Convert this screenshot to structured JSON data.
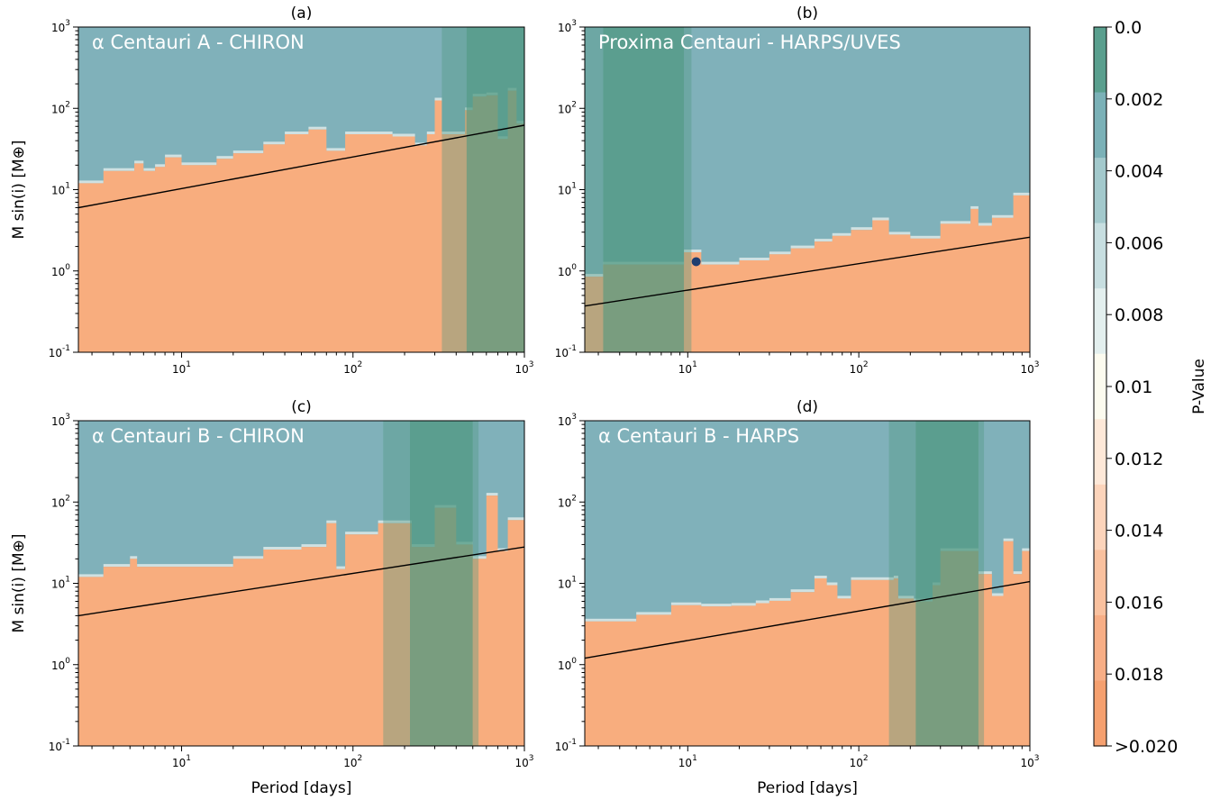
{
  "colors": {
    "low_pvalue": "#4f9880",
    "background": "#80b1ba",
    "detectable": "#f8ad7e",
    "habitable_zone": "#4f9880",
    "trend_line": "#000000",
    "planet_marker": "#1f3e70"
  },
  "colorbar": {
    "label": "P-Value",
    "ticks": [
      "0.0",
      "0.002",
      "0.004",
      "0.006",
      "0.008",
      "0.01",
      "0.012",
      "0.014",
      "0.016",
      "0.018",
      ">0.020"
    ],
    "colors": [
      "#5a9f8e",
      "#7bb1b7",
      "#a3c9cc",
      "#c7dee0",
      "#e3efee",
      "#fcfbef",
      "#fde8d8",
      "#fcd4bb",
      "#f9c19f",
      "#f7ae86",
      "#f5a06f"
    ]
  },
  "chart_data": [
    {
      "type": "heatmap",
      "panel": "(a)",
      "title": "(a)",
      "label": "α Centauri A - CHIRON",
      "ylabel": "M sin(i) [M⊕]",
      "xlabel": "",
      "xscale": "log",
      "yscale": "log",
      "xlim": [
        2.5,
        1000
      ],
      "ylim": [
        0.1,
        1000
      ],
      "x_ticks": [
        "10^1",
        "10^2",
        "10^3"
      ],
      "y_ticks": [
        "10^-1",
        "10^0",
        "10^1",
        "10^2",
        "10^3"
      ],
      "detection_boundary": [
        [
          2.5,
          12
        ],
        [
          3.5,
          17
        ],
        [
          5.3,
          21
        ],
        [
          6,
          17
        ],
        [
          7,
          19
        ],
        [
          8,
          25
        ],
        [
          10,
          20
        ],
        [
          16,
          24
        ],
        [
          20,
          28
        ],
        [
          30,
          36
        ],
        [
          40,
          48
        ],
        [
          55,
          55
        ],
        [
          70,
          30
        ],
        [
          90,
          48
        ],
        [
          170,
          45
        ],
        [
          230,
          35
        ],
        [
          270,
          48
        ],
        [
          300,
          125
        ],
        [
          330,
          48
        ],
        [
          450,
          95
        ],
        [
          500,
          140
        ],
        [
          600,
          145
        ],
        [
          700,
          42
        ],
        [
          800,
          165
        ],
        [
          900,
          65
        ],
        [
          1000,
          48
        ]
      ],
      "trend_line": [
        [
          2.5,
          6
        ],
        [
          1000,
          62
        ]
      ],
      "shaded_regions": [
        {
          "x": [
            330,
            460
          ],
          "style": "light"
        },
        {
          "x": [
            460,
            1000
          ],
          "style": "dark"
        }
      ],
      "planets": []
    },
    {
      "type": "heatmap",
      "panel": "(b)",
      "title": "(b)",
      "label": "Proxima Centauri - HARPS/UVES",
      "ylabel": "",
      "xlabel": "",
      "xscale": "log",
      "yscale": "log",
      "xlim": [
        2.5,
        1000
      ],
      "ylim": [
        0.1,
        1000
      ],
      "x_ticks": [
        "10^1",
        "10^2",
        "10^3"
      ],
      "y_ticks": [
        "10^-1",
        "10^0",
        "10^1",
        "10^2",
        "10^3"
      ],
      "detection_boundary": [
        [
          2.5,
          0.85
        ],
        [
          3.2,
          1.2
        ],
        [
          9.5,
          1.7
        ],
        [
          12,
          1.2
        ],
        [
          20,
          1.35
        ],
        [
          30,
          1.6
        ],
        [
          40,
          1.9
        ],
        [
          55,
          2.3
        ],
        [
          70,
          2.7
        ],
        [
          90,
          3.2
        ],
        [
          120,
          4.2
        ],
        [
          150,
          2.8
        ],
        [
          200,
          2.5
        ],
        [
          300,
          3.8
        ],
        [
          450,
          5.8
        ],
        [
          500,
          3.6
        ],
        [
          600,
          4.5
        ],
        [
          800,
          8.5
        ],
        [
          1000,
          7
        ]
      ],
      "trend_line": [
        [
          2.5,
          0.37
        ],
        [
          1000,
          2.6
        ]
      ],
      "shaded_regions": [
        {
          "x": [
            2.5,
            3.2
          ],
          "style": "light"
        },
        {
          "x": [
            3.2,
            9.5
          ],
          "style": "dark"
        },
        {
          "x": [
            9.5,
            10.5
          ],
          "style": "light"
        }
      ],
      "planets": [
        {
          "x": 11.2,
          "y": 1.3
        }
      ]
    },
    {
      "type": "heatmap",
      "panel": "(c)",
      "title": "(c)",
      "label": "α Centauri B - CHIRON",
      "ylabel": "M sin(i) [M⊕]",
      "xlabel": "Period [days]",
      "xscale": "log",
      "yscale": "log",
      "xlim": [
        2.5,
        1000
      ],
      "ylim": [
        0.1,
        1000
      ],
      "x_ticks": [
        "10^1",
        "10^2",
        "10^3"
      ],
      "y_ticks": [
        "10^-1",
        "10^0",
        "10^1",
        "10^2",
        "10^3"
      ],
      "detection_boundary": [
        [
          2.5,
          12
        ],
        [
          3.5,
          16
        ],
        [
          5,
          20
        ],
        [
          5.5,
          16
        ],
        [
          20,
          20
        ],
        [
          30,
          26
        ],
        [
          50,
          28
        ],
        [
          70,
          55
        ],
        [
          80,
          15
        ],
        [
          90,
          40
        ],
        [
          140,
          55
        ],
        [
          220,
          28
        ],
        [
          300,
          85
        ],
        [
          400,
          30
        ],
        [
          500,
          20
        ],
        [
          600,
          120
        ],
        [
          700,
          25
        ],
        [
          800,
          60
        ],
        [
          1000,
          40
        ]
      ],
      "trend_line": [
        [
          2.5,
          4
        ],
        [
          1000,
          28
        ]
      ],
      "shaded_regions": [
        {
          "x": [
            150,
            215
          ],
          "style": "light"
        },
        {
          "x": [
            215,
            500
          ],
          "style": "dark"
        },
        {
          "x": [
            500,
            540
          ],
          "style": "light"
        }
      ],
      "planets": []
    },
    {
      "type": "heatmap",
      "panel": "(d)",
      "title": "(d)",
      "label": "α Centauri B - HARPS",
      "ylabel": "",
      "xlabel": "Period [days]",
      "xscale": "log",
      "yscale": "log",
      "xlim": [
        2.5,
        1000
      ],
      "ylim": [
        0.1,
        1000
      ],
      "x_ticks": [
        "10^1",
        "10^2",
        "10^3"
      ],
      "y_ticks": [
        "10^-1",
        "10^0",
        "10^1",
        "10^2",
        "10^3"
      ],
      "detection_boundary": [
        [
          2.5,
          3.4
        ],
        [
          5,
          4.1
        ],
        [
          8,
          5.4
        ],
        [
          12,
          5.2
        ],
        [
          18,
          5.3
        ],
        [
          25,
          5.7
        ],
        [
          30,
          6.1
        ],
        [
          40,
          7.8
        ],
        [
          55,
          11.5
        ],
        [
          65,
          9.5
        ],
        [
          75,
          6.5
        ],
        [
          90,
          11
        ],
        [
          160,
          11.5
        ],
        [
          170,
          6.5
        ],
        [
          210,
          6
        ],
        [
          270,
          9.5
        ],
        [
          300,
          25
        ],
        [
          500,
          13
        ],
        [
          600,
          7
        ],
        [
          700,
          33
        ],
        [
          800,
          13
        ],
        [
          900,
          25
        ],
        [
          1000,
          14
        ]
      ],
      "trend_line": [
        [
          2.5,
          1.2
        ],
        [
          1000,
          10.5
        ]
      ],
      "shaded_regions": [
        {
          "x": [
            150,
            215
          ],
          "style": "light"
        },
        {
          "x": [
            215,
            500
          ],
          "style": "dark"
        },
        {
          "x": [
            500,
            540
          ],
          "style": "light"
        }
      ],
      "planets": []
    }
  ]
}
